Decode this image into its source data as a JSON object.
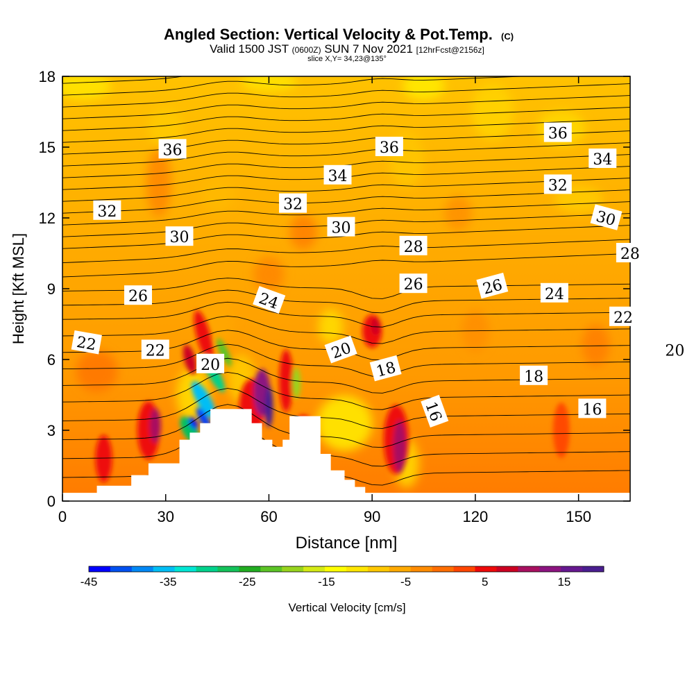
{
  "chart_data": {
    "type": "heatmap",
    "title": "Angled Section: Vertical Velocity & Pot.Temp.",
    "title_mark": "(C)",
    "subtitle": {
      "valid": "Valid 1500 JST",
      "zulu": "(0600Z)",
      "date": "SUN 7 Nov 2021",
      "forecast": "[12hrFcst@2156z]"
    },
    "slice_label": "slice X,Y= 34,23@135°",
    "xlabel": "Distance [nm]",
    "ylabel": "Height [Kft MSL]",
    "xlim": [
      0,
      165
    ],
    "ylim": [
      0,
      18
    ],
    "x_ticks": [
      0,
      30,
      60,
      90,
      120,
      150
    ],
    "y_ticks": [
      0,
      3,
      6,
      9,
      12,
      15,
      18
    ],
    "colorbar": {
      "label": "Vertical Velocity [cm/s]",
      "range": [
        -45,
        20
      ],
      "tick_labels": [
        "-45",
        "-35",
        "-25",
        "-15",
        "-5",
        "5",
        "15"
      ],
      "tick_values": [
        -45,
        -35,
        -25,
        -15,
        -5,
        5,
        15
      ],
      "colors": [
        "#0000ff",
        "#0050f0",
        "#0088f5",
        "#00bef5",
        "#00e6d4",
        "#00d28c",
        "#14c25a",
        "#22ad22",
        "#5cc426",
        "#98d41e",
        "#d4ea16",
        "#ffff00",
        "#ffe600",
        "#ffc800",
        "#ffaa00",
        "#ff8c00",
        "#ff6e00",
        "#ff4600",
        "#ee0a0a",
        "#cc0022",
        "#a81060",
        "#8c1480",
        "#661890",
        "#4a1e90"
      ]
    },
    "terrain": [
      [
        0,
        0.35
      ],
      [
        10,
        0.35
      ],
      [
        10,
        0.65
      ],
      [
        15,
        0.65
      ],
      [
        15,
        0.65
      ],
      [
        20,
        1.1
      ],
      [
        25,
        1.6
      ],
      [
        30,
        1.6
      ],
      [
        34,
        2.6
      ],
      [
        37,
        2.9
      ],
      [
        40,
        3.3
      ],
      [
        43,
        3.9
      ],
      [
        52,
        3.9
      ],
      [
        55,
        3.3
      ],
      [
        58,
        2.6
      ],
      [
        61,
        2.3
      ],
      [
        64,
        2.6
      ],
      [
        66,
        3.6
      ],
      [
        72,
        3.6
      ],
      [
        75,
        2.0
      ],
      [
        78,
        1.3
      ],
      [
        82,
        0.9
      ],
      [
        85,
        0.6
      ],
      [
        88,
        0.35
      ],
      [
        165,
        0.35
      ]
    ],
    "theta_labels": [
      {
        "text": "36",
        "x": 34,
        "y": 14.9,
        "rot": 0
      },
      {
        "text": "36",
        "x": 97,
        "y": 15.0,
        "rot": 0
      },
      {
        "text": "36",
        "x": 146,
        "y": 15.6,
        "rot": 0
      },
      {
        "text": "34",
        "x": 82,
        "y": 13.8,
        "rot": 0
      },
      {
        "text": "34",
        "x": 159,
        "y": 14.5,
        "rot": 0
      },
      {
        "text": "32",
        "x": 15,
        "y": 12.3,
        "rot": 0
      },
      {
        "text": "32",
        "x": 69,
        "y": 12.6,
        "rot": 0
      },
      {
        "text": "32",
        "x": 146,
        "y": 13.4,
        "rot": 0
      },
      {
        "text": "30",
        "x": 36,
        "y": 11.2,
        "rot": 0
      },
      {
        "text": "30",
        "x": 83,
        "y": 11.6,
        "rot": 0
      },
      {
        "text": "30",
        "x": 160,
        "y": 12.0,
        "rot": 15
      },
      {
        "text": "28",
        "x": 104,
        "y": 10.8,
        "rot": 0
      },
      {
        "text": "28",
        "x": 167,
        "y": 10.5,
        "rot": 0
      },
      {
        "text": "26",
        "x": 24,
        "y": 8.7,
        "rot": 0
      },
      {
        "text": "26",
        "x": 104,
        "y": 9.2,
        "rot": 0
      },
      {
        "text": "26",
        "x": 127,
        "y": 9.1,
        "rot": -15
      },
      {
        "text": "24",
        "x": 62,
        "y": 8.5,
        "rot": 20
      },
      {
        "text": "24",
        "x": 145,
        "y": 8.8,
        "rot": 0
      },
      {
        "text": "22",
        "x": 9,
        "y": 6.7,
        "rot": 10
      },
      {
        "text": "22",
        "x": 29,
        "y": 6.4,
        "rot": 0
      },
      {
        "text": "22",
        "x": 165,
        "y": 7.8,
        "rot": 0
      },
      {
        "text": "20",
        "x": 45,
        "y": 5.8,
        "rot": 0
      },
      {
        "text": "20",
        "x": 83,
        "y": 6.4,
        "rot": -20
      },
      {
        "text": "20",
        "x": 180,
        "y": 6.4,
        "rot": 0
      },
      {
        "text": "18",
        "x": 96,
        "y": 5.6,
        "rot": -15
      },
      {
        "text": "18",
        "x": 139,
        "y": 5.3,
        "rot": 0
      },
      {
        "text": "16",
        "x": 110,
        "y": 3.8,
        "rot": 70
      },
      {
        "text": "16",
        "x": 156,
        "y": 3.9,
        "rot": 0
      }
    ]
  }
}
